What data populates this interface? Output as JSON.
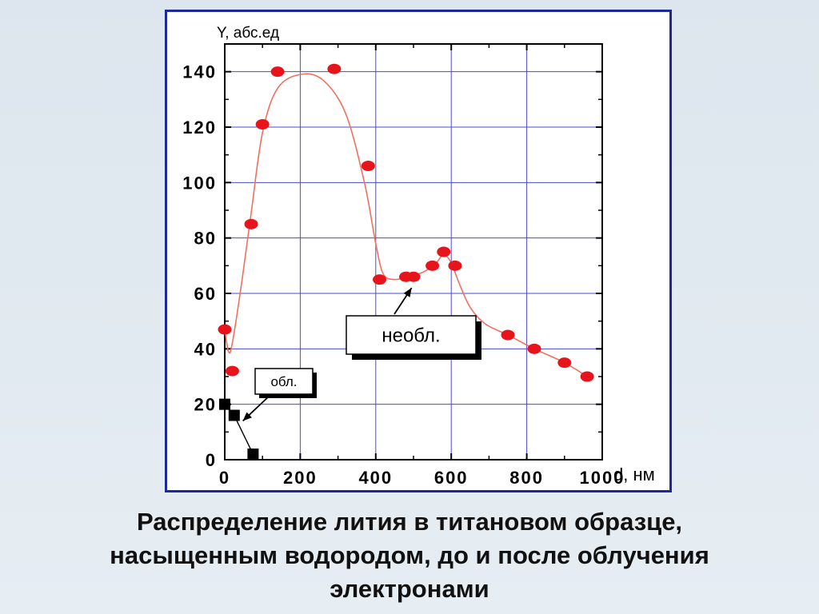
{
  "caption": {
    "line1": "Распределение лития в титановом образце,",
    "line2": "насыщенным водородом, до и после облучения",
    "line3": "электронами"
  },
  "chart_data": {
    "type": "scatter",
    "ylabel": "Y, абс.ед",
    "xlabel": "d, нм",
    "xlim": [
      0,
      1000
    ],
    "ylim": [
      0,
      150
    ],
    "xticks": [
      0,
      200,
      400,
      600,
      800,
      1000
    ],
    "yticks": [
      0,
      20,
      40,
      60,
      80,
      100,
      120,
      140
    ],
    "xtick_labels": [
      "0",
      "200",
      "400",
      "600",
      "800",
      "1000"
    ],
    "ytick_labels": [
      "0",
      "20",
      "40",
      "60",
      "80",
      "100",
      "120",
      "140"
    ],
    "grid": true,
    "annotations": [
      {
        "text": "необл.",
        "target_series": 0,
        "target": [
          495,
          62
        ]
      },
      {
        "text": "обл.",
        "target_series": 1,
        "target": [
          48,
          14
        ]
      }
    ],
    "series": [
      {
        "name": "необл.",
        "marker": "circle",
        "color": "#e8141c",
        "x": [
          0,
          20,
          70,
          100,
          140,
          290,
          380,
          410,
          480,
          500,
          550,
          580,
          610,
          750,
          820,
          900,
          960
        ],
        "y": [
          47,
          32,
          85,
          121,
          140,
          141,
          106,
          65,
          66,
          66,
          70,
          75,
          70,
          45,
          40,
          35,
          30
        ],
        "curve_x": [
          0,
          10,
          20,
          45,
          70,
          100,
          140,
          200,
          260,
          320,
          370,
          400,
          420,
          450,
          480,
          500,
          530,
          560,
          580,
          600,
          620,
          650,
          690,
          750,
          820,
          900,
          960
        ],
        "curve_y": [
          47,
          39,
          42,
          64,
          89,
          118,
          134,
          139,
          137,
          125,
          100,
          78,
          67,
          65,
          66,
          66.5,
          68,
          71,
          74,
          71,
          64,
          55,
          49,
          45,
          40,
          35,
          30
        ]
      },
      {
        "name": "обл.",
        "marker": "square",
        "color": "#000000",
        "x": [
          0,
          25,
          75
        ],
        "y": [
          20,
          16,
          2
        ],
        "curve_x": [
          0,
          25,
          75
        ],
        "curve_y": [
          20,
          16,
          2
        ]
      }
    ],
    "colors": {
      "axis": "#000000",
      "grid": "#4a4ad0",
      "curve": "#f07060"
    }
  }
}
